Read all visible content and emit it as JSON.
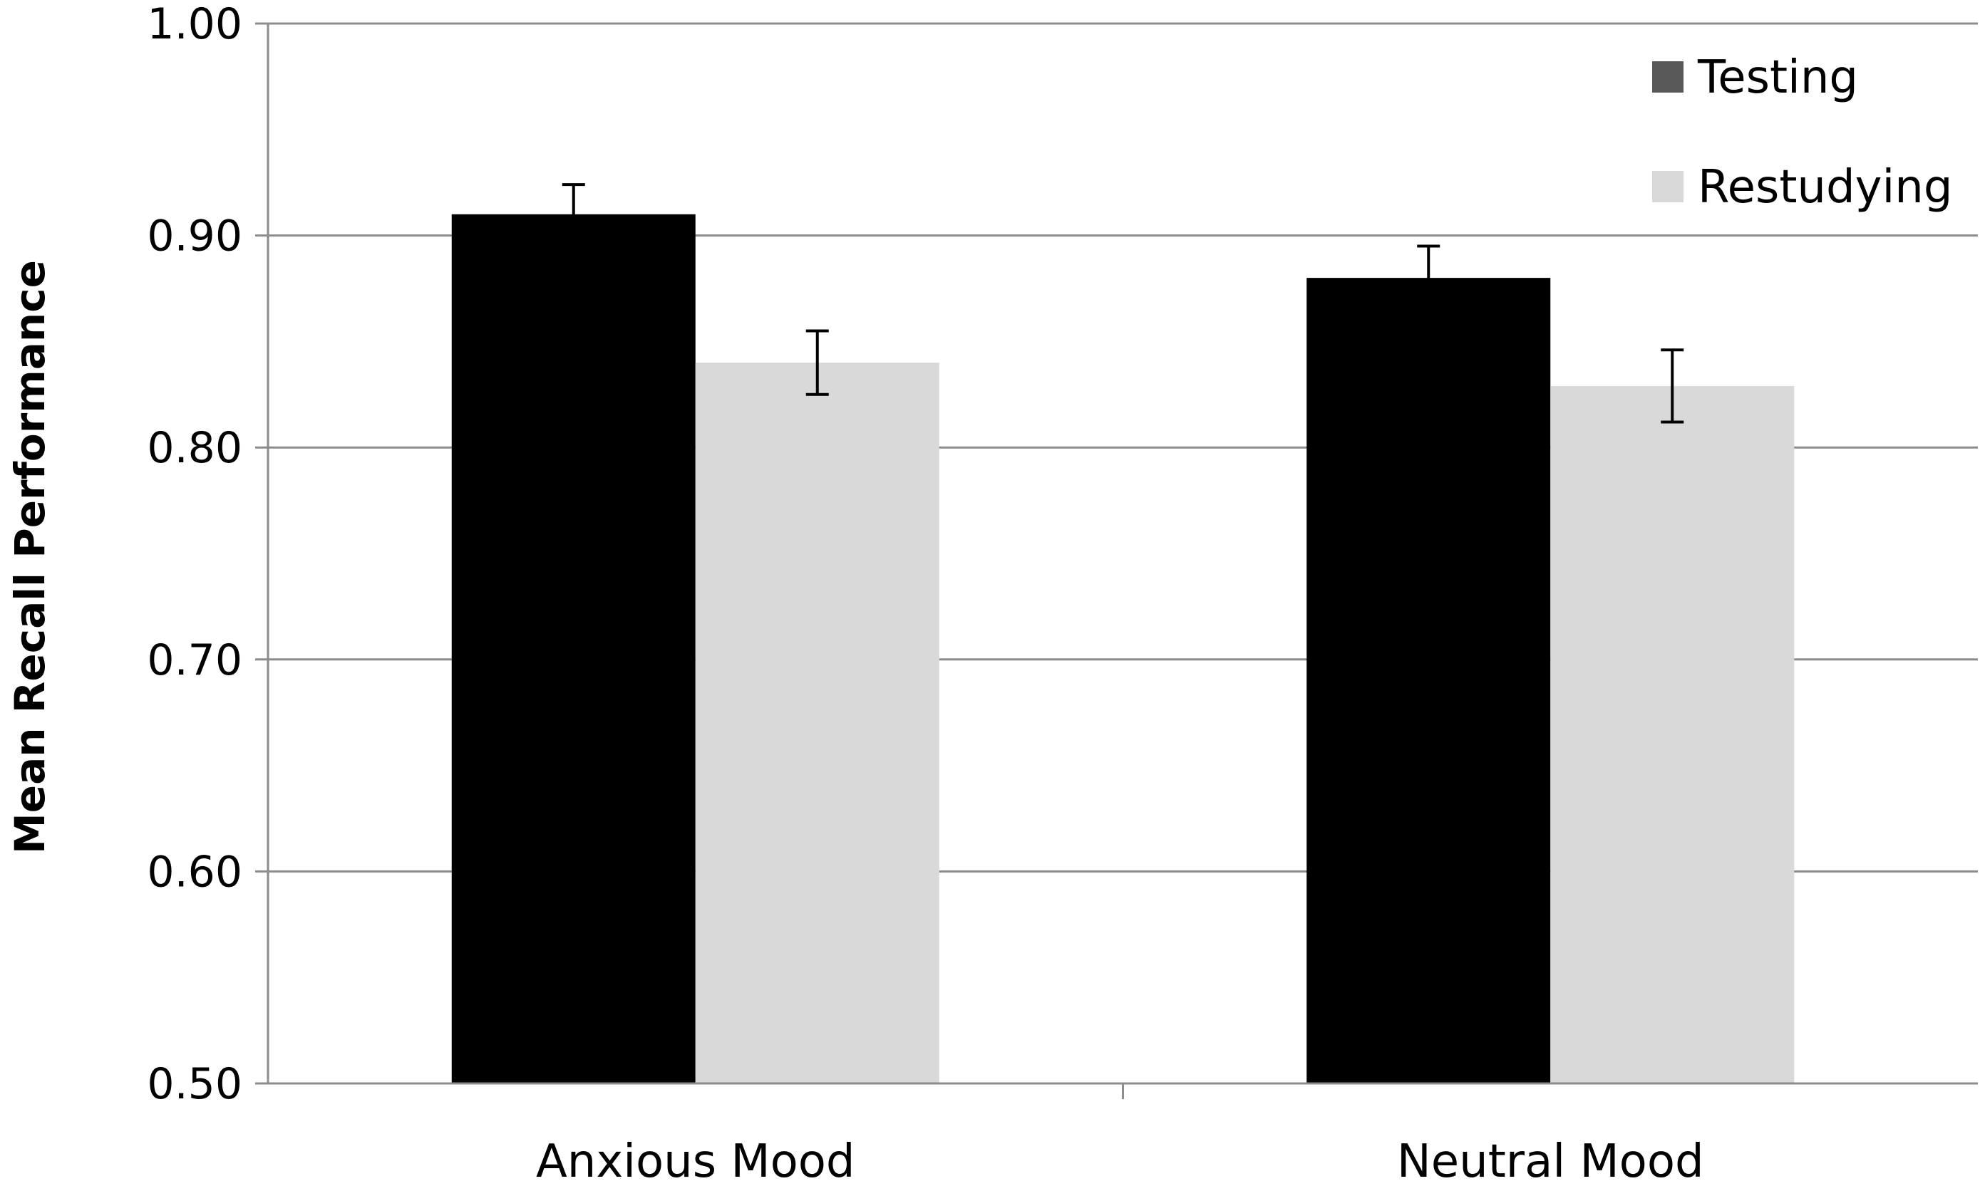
{
  "chart_data": {
    "type": "bar",
    "title": "",
    "xlabel": "",
    "ylabel": "Mean Recall Performance",
    "ylim": [
      0.5,
      1.0
    ],
    "yticks": [
      "0.50",
      "0.60",
      "0.70",
      "0.80",
      "0.90",
      "1.00"
    ],
    "ytick_values": [
      0.5,
      0.6,
      0.7,
      0.8,
      0.9,
      1.0
    ],
    "grid": true,
    "legend_position": "top-right",
    "categories": [
      "Anxious Mood",
      "Neutral Mood"
    ],
    "series": [
      {
        "name": "Testing",
        "color": "#000000",
        "legend_color": "#595959",
        "values": [
          0.91,
          0.88
        ],
        "errors": [
          0.014,
          0.015
        ]
      },
      {
        "name": "Restudying",
        "color": "#d9d9d9",
        "legend_color": "#d9d9d9",
        "values": [
          0.84,
          0.829
        ],
        "errors": [
          0.015,
          0.017
        ]
      }
    ]
  }
}
